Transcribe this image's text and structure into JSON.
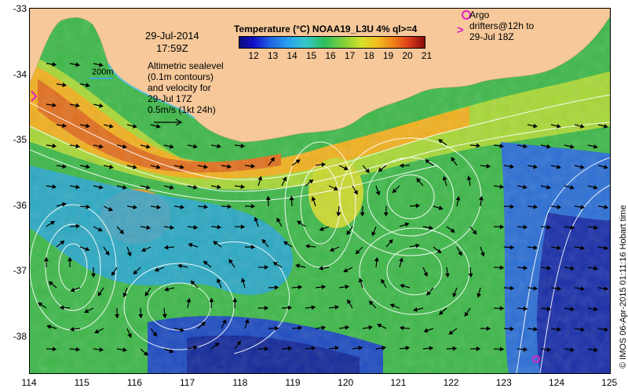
{
  "title": "Temperature (°C) NOAA19_L3U 4% ql>=4",
  "date": "29-Jul-2014",
  "time": "17:59Z",
  "altimetry_lines": [
    "Altimetric sealevel",
    "(0.1m contours)",
    "and velocity for",
    "29-Jul 17Z",
    "0.5m/s (1kt 24h)"
  ],
  "depth_scale": "200m",
  "argo_lines": [
    "Argo",
    "drifters@12h to",
    "29-Jul 18Z"
  ],
  "credit": "© IMOS 06-Apr-2015 01:11:16 Hobart time",
  "colorbar_labels": [
    "12",
    "13",
    "14",
    "15",
    "16",
    "17",
    "18",
    "19",
    "20",
    "21"
  ],
  "lat_labels": [
    "-33",
    "-34",
    "-35",
    "-36",
    "-37",
    "-38"
  ],
  "lon_labels": [
    "114",
    "115",
    "116",
    "117",
    "118",
    "119",
    "120",
    "121",
    "122",
    "123",
    "124",
    "125"
  ],
  "colors": {
    "land": "#f6c89a",
    "argo": "#e020c0",
    "contour": "#ffffff"
  }
}
